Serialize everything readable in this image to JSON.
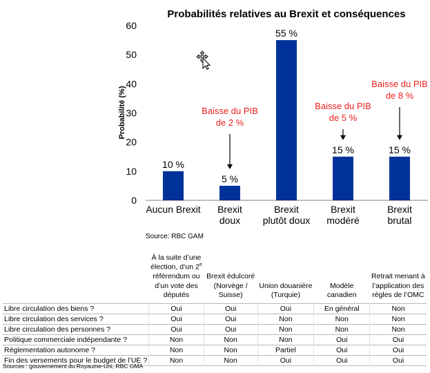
{
  "chart_data": {
    "type": "bar",
    "title": "Probabilités relatives au Brexit et conséquences",
    "ylabel": "Probabilité (%)",
    "xlabel": "",
    "ylim": [
      0,
      60
    ],
    "yticks": [
      "0",
      "10",
      "20",
      "30",
      "40",
      "50",
      "60"
    ],
    "categories": [
      [
        "Aucun Brexit"
      ],
      [
        "Brexit",
        "doux"
      ],
      [
        "Brexit",
        "plutôt doux"
      ],
      [
        "Brexit",
        "modéré"
      ],
      [
        "Brexit",
        "brutal"
      ]
    ],
    "values": [
      10,
      5,
      55,
      15,
      15
    ],
    "value_labels": [
      "10 %",
      "5 %",
      "55 %",
      "15 %",
      "15 %"
    ],
    "bar_color": "#00339a",
    "grid": false,
    "annotations": [
      {
        "category_index": 1,
        "lines": [
          "Baisse du PIB",
          "de 2 %"
        ],
        "color": "#e8201f"
      },
      {
        "category_index": 3,
        "lines": [
          "Baisse du PIB",
          "de 5 %"
        ],
        "color": "#e8201f"
      },
      {
        "category_index": 4,
        "lines": [
          "Baisse du PIB",
          "de 8 %"
        ],
        "color": "#e8201f"
      }
    ],
    "source": "Source: RBC GAM"
  },
  "table": {
    "headers": [
      "",
      "À la suite d’une élection, d’un 2e référendum ou d’un vote des députés",
      "Brexit édulcoré (Norvège / Suisse)",
      "Union douanière (Turquie)",
      "Modèle canadien",
      "Retrait menant à l’application des règles de l’OMC"
    ],
    "rows": [
      {
        "label": "Libre circulation des biens ?",
        "values": [
          "Oui",
          "Oui",
          "Oui",
          "En général",
          "Non"
        ]
      },
      {
        "label": "Libre circulation des services ?",
        "values": [
          "Oui",
          "Oui",
          "Non",
          "Non",
          "Non"
        ]
      },
      {
        "label": "Libre circulation des personnes ?",
        "values": [
          "Oui",
          "Oui",
          "Non",
          "Non",
          "Non"
        ]
      },
      {
        "label": "Politique commerciale indépendante ?",
        "values": [
          "Non",
          "Non",
          "Non",
          "Oui",
          "Oui"
        ]
      },
      {
        "label": "Réglementation autonome ?",
        "values": [
          "Non",
          "Non",
          "Partiel",
          "Oui",
          "Oui"
        ]
      },
      {
        "label": "Fin des versements pour le budget de l’UE ?",
        "values": [
          "Non",
          "Non",
          "Oui",
          "Oui",
          "Oui"
        ]
      }
    ],
    "footer": "Sources : gouvernement du Royaume-Uni, RBC GMA"
  }
}
